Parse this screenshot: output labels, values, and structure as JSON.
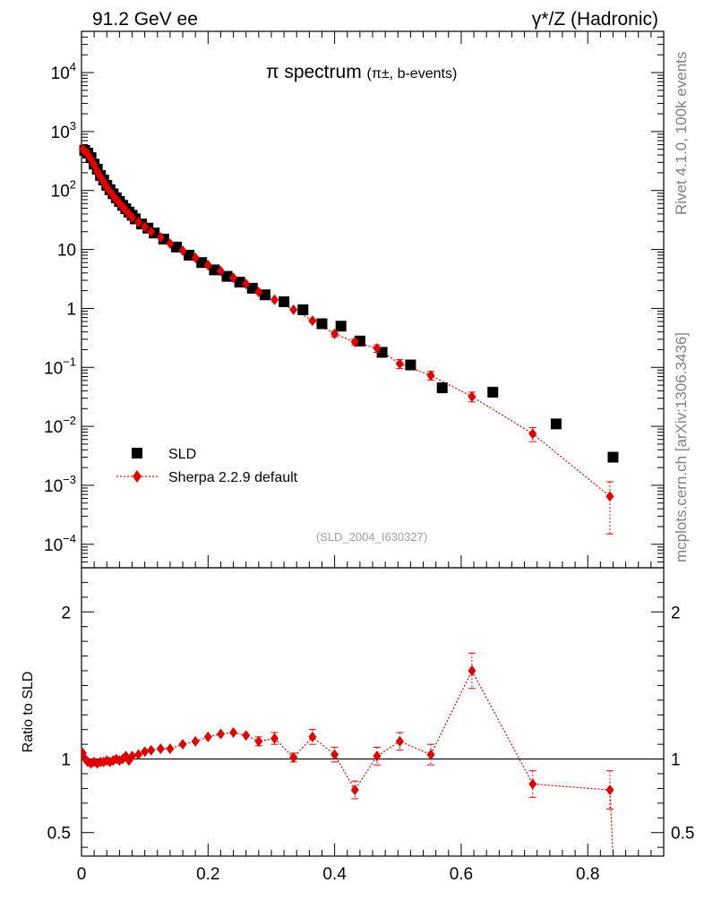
{
  "header": {
    "left": "91.2 GeV ee",
    "right": "γ*/Z (Hadronic)"
  },
  "sidebar": {
    "rivet": "Rivet 4.1.0,  100k events",
    "mcplots": "mcplots.cern.ch [arXiv:1306.3436]"
  },
  "chart_data": {
    "type": "scatter",
    "title_main": "π spectrum",
    "title_sub": "(π±, b-events)",
    "analysis_tag": "(SLD_2004_I630327)",
    "x_range": [
      0,
      0.92
    ],
    "upper": {
      "yscale": "log",
      "ylim": [
        4e-05,
        50000
      ],
      "ytick_labels": [
        "10^4",
        "10^3",
        "10^2",
        "10",
        "1",
        "10^-1",
        "10^-2",
        "10^-3",
        "10^-4"
      ]
    },
    "lower": {
      "ylabel": "Ratio to SLD",
      "ylim": [
        0.34,
        2.3
      ],
      "ytick_labels": [
        "2",
        "1",
        "0.5"
      ]
    },
    "xtick_labels": [
      "0",
      "0.2",
      "0.4",
      "0.6",
      "0.8"
    ],
    "legend": {
      "position": "bottom-left",
      "data_label": "SLD",
      "mc_label": "Sherpa 2.2.9 default"
    },
    "series": [
      {
        "name": "SLD",
        "x": [
          0.005,
          0.01,
          0.015,
          0.02,
          0.025,
          0.03,
          0.035,
          0.04,
          0.045,
          0.05,
          0.055,
          0.06,
          0.065,
          0.07,
          0.075,
          0.08,
          0.085,
          0.095,
          0.105,
          0.115,
          0.13,
          0.15,
          0.17,
          0.19,
          0.21,
          0.23,
          0.25,
          0.27,
          0.29,
          0.32,
          0.35,
          0.38,
          0.41,
          0.44,
          0.475,
          0.52,
          0.57,
          0.65,
          0.75,
          0.84
        ],
        "values": [
          480,
          430,
          360,
          280,
          230,
          180,
          150,
          122,
          103,
          88,
          75,
          65,
          56,
          49,
          43,
          38,
          33,
          27,
          23,
          19,
          15,
          11,
          8,
          6,
          4.5,
          3.5,
          2.8,
          2.2,
          1.7,
          1.3,
          0.95,
          0.55,
          0.5,
          0.28,
          0.18,
          0.11,
          0.045,
          0.038,
          0.011,
          0.003
        ]
      },
      {
        "name": "Sherpa 2.2.9 default",
        "x": [
          0.002,
          0.006,
          0.01,
          0.015,
          0.02,
          0.025,
          0.03,
          0.035,
          0.04,
          0.045,
          0.05,
          0.055,
          0.06,
          0.065,
          0.07,
          0.075,
          0.08,
          0.09,
          0.1,
          0.11,
          0.125,
          0.14,
          0.16,
          0.18,
          0.2,
          0.22,
          0.24,
          0.26,
          0.28,
          0.305,
          0.335,
          0.365,
          0.4,
          0.432,
          0.467,
          0.503,
          0.552,
          0.617,
          0.713,
          0.835
        ],
        "values": [
          500,
          460,
          410,
          340,
          270,
          210,
          170,
          140,
          115,
          96,
          82,
          70,
          61,
          53,
          46,
          40,
          35,
          29,
          24,
          20,
          16,
          12.5,
          9.5,
          7.2,
          5.4,
          4.3,
          3.3,
          2.6,
          1.9,
          1.4,
          0.95,
          0.62,
          0.37,
          0.27,
          0.21,
          0.115,
          0.073,
          0.032,
          0.0075,
          0.00065
        ],
        "errors": [
          0,
          0,
          0,
          0,
          0,
          0,
          0,
          0,
          0,
          0,
          0,
          0,
          0,
          0,
          0,
          0,
          0,
          0,
          0,
          0,
          0,
          0,
          0,
          0,
          0,
          0,
          0,
          0,
          0,
          0,
          0,
          0.03,
          0.04,
          0.03,
          0.03,
          0.02,
          0.012,
          0.006,
          0.002,
          0.0005
        ],
        "ratio": [
          1.04,
          1.0,
          0.98,
          0.97,
          0.98,
          0.97,
          0.98,
          0.98,
          0.99,
          0.98,
          0.99,
          1.0,
          0.99,
          1.0,
          1.02,
          0.99,
          1.02,
          1.03,
          1.05,
          1.06,
          1.07,
          1.07,
          1.1,
          1.12,
          1.15,
          1.17,
          1.18,
          1.16,
          1.12,
          1.14,
          1.01,
          1.15,
          1.03,
          0.79,
          1.02,
          1.12,
          1.03,
          1.6,
          0.83,
          0.79,
          0.33
        ],
        "ratio_x": [
          0.002,
          0.006,
          0.01,
          0.015,
          0.02,
          0.025,
          0.03,
          0.035,
          0.04,
          0.045,
          0.05,
          0.055,
          0.06,
          0.065,
          0.07,
          0.075,
          0.08,
          0.09,
          0.1,
          0.11,
          0.125,
          0.14,
          0.16,
          0.18,
          0.2,
          0.22,
          0.24,
          0.26,
          0.28,
          0.305,
          0.335,
          0.365,
          0.4,
          0.432,
          0.467,
          0.503,
          0.552,
          0.617,
          0.713,
          0.835,
          0.84
        ],
        "ratio_err": [
          0.02,
          0.02,
          0.02,
          0.02,
          0.02,
          0.02,
          0.02,
          0.02,
          0.02,
          0.02,
          0.02,
          0.02,
          0.02,
          0.02,
          0.02,
          0.02,
          0.02,
          0.02,
          0.02,
          0.02,
          0.02,
          0.02,
          0.02,
          0.02,
          0.02,
          0.02,
          0.02,
          0.02,
          0.03,
          0.04,
          0.03,
          0.05,
          0.05,
          0.06,
          0.06,
          0.06,
          0.07,
          0.12,
          0.09,
          0.13,
          0.0
        ]
      }
    ]
  },
  "colors": {
    "data": "#000000",
    "mc": "#e00000",
    "axis": "#000000",
    "muted": "#808080"
  }
}
